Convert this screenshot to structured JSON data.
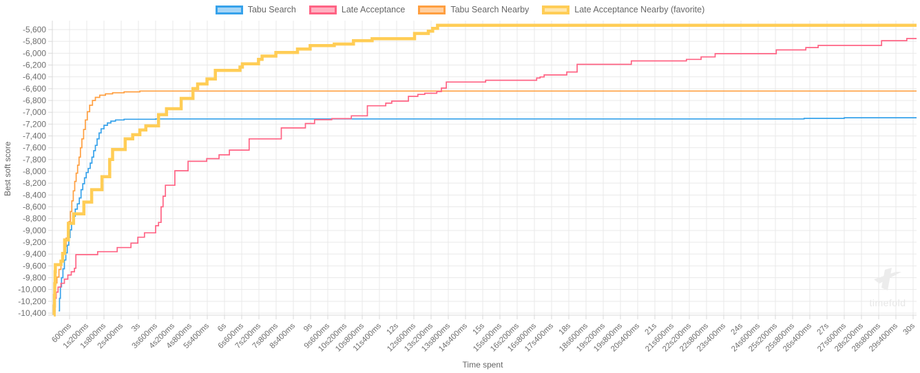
{
  "chart_data": {
    "type": "line",
    "step_mode": "after",
    "title": "",
    "xlabel": "Time spent",
    "ylabel": "Best soft score",
    "x_max_ms": 30000,
    "x_tick_interval_ms": 600,
    "x_tick_labels": [
      "600ms",
      "1s200ms",
      "1s800ms",
      "2s400ms",
      "3s",
      "3s600ms",
      "4s200ms",
      "4s800ms",
      "5s400ms",
      "6s",
      "6s600ms",
      "7s200ms",
      "7s800ms",
      "8s400ms",
      "9s",
      "9s600ms",
      "10s200ms",
      "10s800ms",
      "11s400ms",
      "12s",
      "12s600ms",
      "13s200ms",
      "13s800ms",
      "14s400ms",
      "15s",
      "15s600ms",
      "16s200ms",
      "16s800ms",
      "17s400ms",
      "18s",
      "18s600ms",
      "19s200ms",
      "19s800ms",
      "20s400ms",
      "21s",
      "21s600ms",
      "22s200ms",
      "22s800ms",
      "23s400ms",
      "24s",
      "24s600ms",
      "25s200ms",
      "25s800ms",
      "26s400ms",
      "27s",
      "27s600ms",
      "28s200ms",
      "28s800ms",
      "29s400ms",
      "30s"
    ],
    "y_ticks": [
      -5600,
      -5800,
      -6000,
      -6200,
      -6400,
      -6600,
      -6800,
      -7000,
      -7200,
      -7400,
      -7600,
      -7800,
      -8000,
      -8200,
      -8400,
      -8600,
      -8800,
      -9000,
      -9200,
      -9400,
      -9600,
      -9800,
      -10000,
      -10200,
      -10400
    ],
    "ylim": [
      -10460,
      -5450
    ],
    "grid": true,
    "legend_position": "top",
    "watermark": "timefold",
    "colors": {
      "grid": "#e9e9e9",
      "axis_border": "#d9d9d9",
      "tick_text": "#6e6e6e"
    },
    "series": [
      {
        "name": "Tabu Search",
        "color": "#36A2EB",
        "fill": "#A6D5F6",
        "line_width": 1.7,
        "draw_order": 1,
        "final_score": -7092,
        "points": [
          [
            220,
            -10360
          ],
          [
            250,
            -10150
          ],
          [
            280,
            -9955
          ],
          [
            320,
            -9800
          ],
          [
            370,
            -9650
          ],
          [
            420,
            -9500
          ],
          [
            470,
            -9380
          ],
          [
            520,
            -9250
          ],
          [
            570,
            -9120
          ],
          [
            620,
            -8990
          ],
          [
            670,
            -8880
          ],
          [
            720,
            -8760
          ],
          [
            800,
            -8640
          ],
          [
            870,
            -8550
          ],
          [
            940,
            -8450
          ],
          [
            1000,
            -8310
          ],
          [
            1060,
            -8210
          ],
          [
            1120,
            -8110
          ],
          [
            1180,
            -8020
          ],
          [
            1250,
            -7950
          ],
          [
            1320,
            -7860
          ],
          [
            1380,
            -7760
          ],
          [
            1440,
            -7650
          ],
          [
            1500,
            -7560
          ],
          [
            1560,
            -7450
          ],
          [
            1630,
            -7350
          ],
          [
            1700,
            -7280
          ],
          [
            1800,
            -7220
          ],
          [
            1920,
            -7180
          ],
          [
            2040,
            -7150
          ],
          [
            2200,
            -7130
          ],
          [
            2500,
            -7118
          ],
          [
            3600,
            -7112
          ],
          [
            26200,
            -7103
          ],
          [
            27600,
            -7092
          ]
        ]
      },
      {
        "name": "Late Acceptance",
        "color": "#FF6384",
        "fill": "#FFB1C1",
        "line_width": 1.7,
        "draw_order": 3,
        "final_score": -5752,
        "points": [
          [
            60,
            -10370
          ],
          [
            100,
            -10150
          ],
          [
            135,
            -10045
          ],
          [
            200,
            -9960
          ],
          [
            300,
            -9895
          ],
          [
            420,
            -9825
          ],
          [
            540,
            -9755
          ],
          [
            660,
            -9700
          ],
          [
            770,
            -9640
          ],
          [
            820,
            -9410
          ],
          [
            1580,
            -9360
          ],
          [
            2260,
            -9290
          ],
          [
            2740,
            -9215
          ],
          [
            2980,
            -9115
          ],
          [
            3210,
            -9040
          ],
          [
            3600,
            -8920
          ],
          [
            3700,
            -8865
          ],
          [
            3790,
            -8600
          ],
          [
            3860,
            -8420
          ],
          [
            3940,
            -8235
          ],
          [
            4270,
            -7990
          ],
          [
            4730,
            -7830
          ],
          [
            5380,
            -7785
          ],
          [
            5810,
            -7720
          ],
          [
            6170,
            -7640
          ],
          [
            6860,
            -7450
          ],
          [
            7980,
            -7265
          ],
          [
            8820,
            -7190
          ],
          [
            9140,
            -7125
          ],
          [
            9740,
            -7108
          ],
          [
            10420,
            -7060
          ],
          [
            10980,
            -6890
          ],
          [
            11620,
            -6845
          ],
          [
            11830,
            -6810
          ],
          [
            12410,
            -6730
          ],
          [
            12740,
            -6698
          ],
          [
            12980,
            -6678
          ],
          [
            13400,
            -6648
          ],
          [
            13560,
            -6590
          ],
          [
            13730,
            -6488
          ],
          [
            15100,
            -6458
          ],
          [
            16880,
            -6420
          ],
          [
            17000,
            -6402
          ],
          [
            17140,
            -6368
          ],
          [
            17930,
            -6318
          ],
          [
            18290,
            -6188
          ],
          [
            20180,
            -6130
          ],
          [
            22100,
            -6105
          ],
          [
            22610,
            -6062
          ],
          [
            23100,
            -6008
          ],
          [
            25230,
            -5944
          ],
          [
            26260,
            -5904
          ],
          [
            26690,
            -5868
          ],
          [
            28900,
            -5788
          ],
          [
            29780,
            -5752
          ]
        ]
      },
      {
        "name": "Tabu Search Nearby",
        "color": "#FF9F40",
        "fill": "#FFCF9F",
        "line_width": 1.7,
        "draw_order": 2,
        "final_score": -6640,
        "points": [
          [
            40,
            -10210
          ],
          [
            70,
            -10000
          ],
          [
            110,
            -9890
          ],
          [
            160,
            -9790
          ],
          [
            230,
            -9660
          ],
          [
            300,
            -9530
          ],
          [
            360,
            -9400
          ],
          [
            420,
            -9270
          ],
          [
            480,
            -9130
          ],
          [
            530,
            -9000
          ],
          [
            580,
            -8850
          ],
          [
            630,
            -8680
          ],
          [
            680,
            -8500
          ],
          [
            730,
            -8330
          ],
          [
            780,
            -8170
          ],
          [
            830,
            -8030
          ],
          [
            880,
            -7895
          ],
          [
            930,
            -7760
          ],
          [
            980,
            -7600
          ],
          [
            1030,
            -7450
          ],
          [
            1090,
            -7290
          ],
          [
            1150,
            -7130
          ],
          [
            1220,
            -6990
          ],
          [
            1300,
            -6880
          ],
          [
            1400,
            -6800
          ],
          [
            1500,
            -6748
          ],
          [
            1650,
            -6712
          ],
          [
            1850,
            -6688
          ],
          [
            2100,
            -6670
          ],
          [
            2500,
            -6654
          ],
          [
            3050,
            -6640
          ]
        ]
      },
      {
        "name": "Late Acceptance Nearby (favorite)",
        "color": "#FFCD56",
        "fill": "#FFE6AB",
        "line_width": 4.5,
        "draw_order": 4,
        "final_score": -5528,
        "points": [
          [
            50,
            -10430
          ],
          [
            65,
            -10280
          ],
          [
            75,
            -10100
          ],
          [
            85,
            -9900
          ],
          [
            95,
            -9700
          ],
          [
            105,
            -9580
          ],
          [
            300,
            -9520
          ],
          [
            360,
            -9390
          ],
          [
            430,
            -9160
          ],
          [
            560,
            -8880
          ],
          [
            740,
            -8720
          ],
          [
            1100,
            -8520
          ],
          [
            1370,
            -8310
          ],
          [
            1730,
            -8090
          ],
          [
            2000,
            -7800
          ],
          [
            2100,
            -7630
          ],
          [
            2540,
            -7450
          ],
          [
            2800,
            -7380
          ],
          [
            3050,
            -7300
          ],
          [
            3260,
            -7230
          ],
          [
            3700,
            -7040
          ],
          [
            3980,
            -6940
          ],
          [
            4490,
            -6765
          ],
          [
            4900,
            -6600
          ],
          [
            5065,
            -6520
          ],
          [
            5390,
            -6435
          ],
          [
            5680,
            -6290
          ],
          [
            6540,
            -6235
          ],
          [
            6625,
            -6180
          ],
          [
            7185,
            -6105
          ],
          [
            7310,
            -6048
          ],
          [
            7790,
            -5988
          ],
          [
            8545,
            -5930
          ],
          [
            8985,
            -5872
          ],
          [
            9825,
            -5845
          ],
          [
            10495,
            -5788
          ],
          [
            11145,
            -5755
          ],
          [
            12625,
            -5665
          ],
          [
            13105,
            -5627
          ],
          [
            13255,
            -5580
          ],
          [
            13425,
            -5528
          ]
        ]
      }
    ]
  }
}
